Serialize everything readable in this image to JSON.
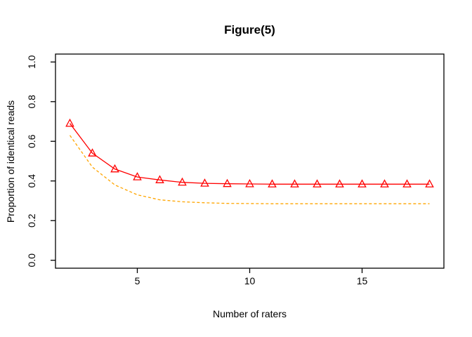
{
  "figure": {
    "background": "#ffffff"
  },
  "chart_data": {
    "type": "line",
    "title": "Figure(5)",
    "xlabel": "Number of raters",
    "ylabel": "Proportion of identical reads",
    "xlim": [
      1.36,
      18.64
    ],
    "ylim": [
      -0.04,
      1.04
    ],
    "x_ticks": {
      "values": [
        5,
        10,
        15
      ],
      "labels": [
        "5",
        "10",
        "15"
      ]
    },
    "y_ticks": {
      "values": [
        0.0,
        0.2,
        0.4,
        0.6,
        0.8,
        1.0
      ],
      "labels": [
        "0.0",
        "0.2",
        "0.4",
        "0.6",
        "0.8",
        "1.0"
      ]
    },
    "grid": false,
    "legend": "none",
    "axis_color": "#000000",
    "x": [
      2,
      3,
      4,
      5,
      6,
      7,
      8,
      9,
      10,
      11,
      12,
      13,
      14,
      15,
      16,
      17,
      18
    ],
    "series": [
      {
        "name": "solid-red-triangle-series",
        "color": "#ff0000",
        "line_style": "solid",
        "marker": "triangle-open",
        "values": [
          0.69,
          0.54,
          0.46,
          0.42,
          0.405,
          0.393,
          0.388,
          0.386,
          0.385,
          0.384,
          0.384,
          0.384,
          0.384,
          0.384,
          0.384,
          0.384,
          0.384
        ]
      },
      {
        "name": "dashed-orange-series",
        "color": "#ffa500",
        "line_style": "dashed",
        "marker": "none",
        "values": [
          0.63,
          0.47,
          0.38,
          0.33,
          0.305,
          0.295,
          0.29,
          0.287,
          0.286,
          0.285,
          0.285,
          0.285,
          0.285,
          0.285,
          0.285,
          0.285,
          0.285
        ]
      }
    ]
  }
}
